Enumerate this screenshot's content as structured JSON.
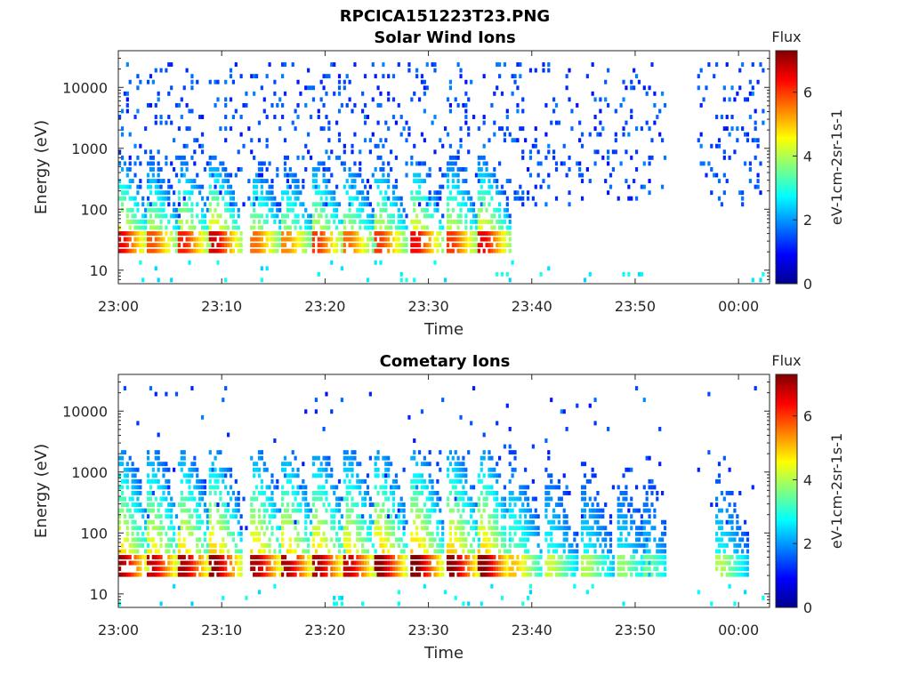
{
  "figure": {
    "filename_title": "RPCICA151223T23.PNG"
  },
  "chart_data": [
    {
      "type": "heatmap",
      "title": "Solar Wind Ions",
      "xlabel": "Time",
      "ylabel": "Energy (eV)",
      "y_scale": "log",
      "ylim": [
        6,
        40000
      ],
      "xlim_minutes": [
        0,
        63
      ],
      "x_ticks": [
        {
          "minute": 0,
          "label": "23:00"
        },
        {
          "minute": 10,
          "label": "23:10"
        },
        {
          "minute": 20,
          "label": "23:20"
        },
        {
          "minute": 30,
          "label": "23:30"
        },
        {
          "minute": 40,
          "label": "23:40"
        },
        {
          "minute": 50,
          "label": "23:50"
        },
        {
          "minute": 60,
          "label": "00:00"
        }
      ],
      "y_ticks": [
        {
          "value": 10,
          "label": "10"
        },
        {
          "value": 100,
          "label": "100"
        },
        {
          "value": 1000,
          "label": "1000"
        },
        {
          "value": 10000,
          "label": "10000"
        }
      ],
      "colorbar": {
        "title": "Flux",
        "label": "eV-1cm-2sr-1s-1",
        "range": [
          0,
          7.3
        ],
        "ticks": [
          0,
          2,
          4,
          6
        ]
      },
      "data_gap_minutes": [
        53,
        56
      ],
      "bursts": [
        {
          "t": 0.5,
          "peak": 6.5
        },
        {
          "t": 3.5,
          "peak": 5.8
        },
        {
          "t": 6.5,
          "peak": 6.2
        },
        {
          "t": 9.5,
          "peak": 6.7
        },
        {
          "t": 13.5,
          "peak": 5.6
        },
        {
          "t": 16.5,
          "peak": 5.4
        },
        {
          "t": 19.5,
          "peak": 6.0
        },
        {
          "t": 22.5,
          "peak": 5.6
        },
        {
          "t": 25.5,
          "peak": 6.0
        },
        {
          "t": 29.0,
          "peak": 6.4
        },
        {
          "t": 32.5,
          "peak": 6.0
        },
        {
          "t": 35.5,
          "peak": 6.5
        }
      ]
    },
    {
      "type": "heatmap",
      "title": "Cometary Ions",
      "xlabel": "Time",
      "ylabel": "Energy (eV)",
      "y_scale": "log",
      "ylim": [
        6,
        40000
      ],
      "xlim_minutes": [
        0,
        63
      ],
      "x_ticks": [
        {
          "minute": 0,
          "label": "23:00"
        },
        {
          "minute": 10,
          "label": "23:10"
        },
        {
          "minute": 20,
          "label": "23:20"
        },
        {
          "minute": 30,
          "label": "23:30"
        },
        {
          "minute": 40,
          "label": "23:40"
        },
        {
          "minute": 50,
          "label": "23:50"
        },
        {
          "minute": 60,
          "label": "00:00"
        }
      ],
      "y_ticks": [
        {
          "value": 10,
          "label": "10"
        },
        {
          "value": 100,
          "label": "100"
        },
        {
          "value": 1000,
          "label": "1000"
        },
        {
          "value": 10000,
          "label": "10000"
        }
      ],
      "colorbar": {
        "title": "Flux",
        "label": "eV-1cm-2sr-1s-1",
        "range": [
          0,
          7.3
        ],
        "ticks": [
          0,
          2,
          4,
          6
        ]
      },
      "data_gap_minutes": [
        53,
        56
      ],
      "bursts": [
        {
          "t": 0.5,
          "peak": 7.0
        },
        {
          "t": 3.5,
          "peak": 6.8
        },
        {
          "t": 6.5,
          "peak": 7.0
        },
        {
          "t": 9.5,
          "peak": 7.2
        },
        {
          "t": 13.5,
          "peak": 7.0
        },
        {
          "t": 16.5,
          "peak": 7.0
        },
        {
          "t": 19.5,
          "peak": 7.0
        },
        {
          "t": 22.5,
          "peak": 6.8
        },
        {
          "t": 25.5,
          "peak": 7.2
        },
        {
          "t": 29.0,
          "peak": 7.3
        },
        {
          "t": 32.5,
          "peak": 7.2
        },
        {
          "t": 35.5,
          "peak": 7.2
        },
        {
          "t": 38.5,
          "peak": 5.0
        },
        {
          "t": 42.0,
          "peak": 4.2
        },
        {
          "t": 45.5,
          "peak": 4.0
        },
        {
          "t": 49.0,
          "peak": 3.8
        },
        {
          "t": 51.5,
          "peak": 3.5
        },
        {
          "t": 58.5,
          "peak": 4.0
        }
      ]
    }
  ]
}
